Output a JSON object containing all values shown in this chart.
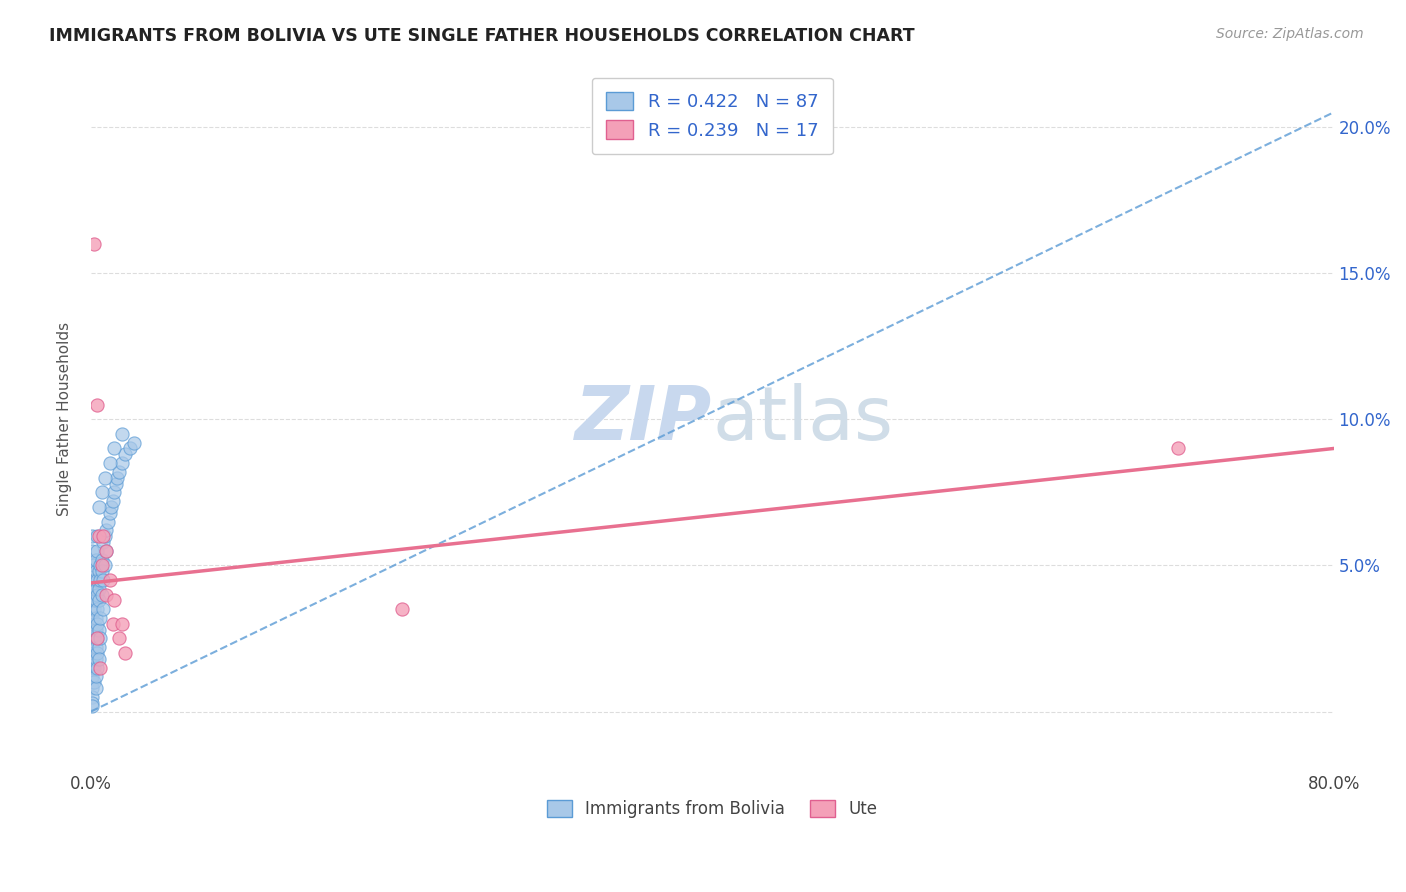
{
  "title": "IMMIGRANTS FROM BOLIVIA VS UTE SINGLE FATHER HOUSEHOLDS CORRELATION CHART",
  "source_text": "Source: ZipAtlas.com",
  "ylabel": "Single Father Households",
  "xlim": [
    0.0,
    0.8
  ],
  "ylim": [
    -0.02,
    0.22
  ],
  "xticks": [
    0.0,
    0.1,
    0.2,
    0.3,
    0.4,
    0.5,
    0.6,
    0.7,
    0.8
  ],
  "xticklabels_show": [
    "0.0%",
    "80.0%"
  ],
  "yticks": [
    0.0,
    0.05,
    0.1,
    0.15,
    0.2
  ],
  "yticklabels_right": [
    "",
    "5.0%",
    "10.0%",
    "15.0%",
    "20.0%"
  ],
  "R_bolivia": 0.422,
  "N_bolivia": 87,
  "R_ute": 0.239,
  "N_ute": 17,
  "color_bolivia": "#a8c8e8",
  "color_ute": "#f4a0b8",
  "edge_bolivia": "#5b9bd5",
  "edge_ute": "#e06090",
  "trendline_bolivia_color": "#5b9bd5",
  "trendline_ute_color": "#e87090",
  "watermark_zip": "ZIP",
  "watermark_atlas": "atlas",
  "watermark_color": "#c8d8ee",
  "title_color": "#222222",
  "grid_color": "#dddddd",
  "legend_color": "#3366cc",
  "bolivia_trend_x0": 0.0,
  "bolivia_trend_y0": 0.0,
  "bolivia_trend_x1": 0.8,
  "bolivia_trend_y1": 0.205,
  "ute_trend_x0": 0.0,
  "ute_trend_y0": 0.044,
  "ute_trend_x1": 0.8,
  "ute_trend_y1": 0.09,
  "bolivia_scatter_x": [
    0.001,
    0.001,
    0.001,
    0.001,
    0.001,
    0.001,
    0.001,
    0.001,
    0.001,
    0.001,
    0.001,
    0.001,
    0.001,
    0.001,
    0.001,
    0.001,
    0.001,
    0.001,
    0.001,
    0.001,
    0.002,
    0.002,
    0.002,
    0.002,
    0.002,
    0.002,
    0.002,
    0.002,
    0.002,
    0.002,
    0.003,
    0.003,
    0.003,
    0.003,
    0.003,
    0.003,
    0.003,
    0.003,
    0.003,
    0.003,
    0.004,
    0.004,
    0.004,
    0.004,
    0.004,
    0.004,
    0.004,
    0.004,
    0.004,
    0.005,
    0.005,
    0.005,
    0.005,
    0.005,
    0.005,
    0.006,
    0.006,
    0.006,
    0.006,
    0.007,
    0.007,
    0.007,
    0.008,
    0.008,
    0.008,
    0.009,
    0.009,
    0.01,
    0.01,
    0.011,
    0.012,
    0.013,
    0.014,
    0.015,
    0.016,
    0.017,
    0.018,
    0.02,
    0.022,
    0.025,
    0.028,
    0.005,
    0.007,
    0.009,
    0.012,
    0.015,
    0.02
  ],
  "bolivia_scatter_y": [
    0.02,
    0.022,
    0.025,
    0.028,
    0.03,
    0.032,
    0.035,
    0.01,
    0.015,
    0.012,
    0.008,
    0.005,
    0.003,
    0.002,
    0.018,
    0.04,
    0.045,
    0.05,
    0.055,
    0.06,
    0.03,
    0.035,
    0.038,
    0.042,
    0.045,
    0.05,
    0.02,
    0.025,
    0.015,
    0.01,
    0.028,
    0.032,
    0.038,
    0.042,
    0.048,
    0.052,
    0.018,
    0.022,
    0.008,
    0.012,
    0.035,
    0.04,
    0.045,
    0.025,
    0.03,
    0.02,
    0.015,
    0.055,
    0.06,
    0.038,
    0.042,
    0.048,
    0.022,
    0.028,
    0.018,
    0.045,
    0.05,
    0.032,
    0.025,
    0.052,
    0.048,
    0.04,
    0.058,
    0.045,
    0.035,
    0.06,
    0.05,
    0.062,
    0.055,
    0.065,
    0.068,
    0.07,
    0.072,
    0.075,
    0.078,
    0.08,
    0.082,
    0.085,
    0.088,
    0.09,
    0.092,
    0.07,
    0.075,
    0.08,
    0.085,
    0.09,
    0.095
  ],
  "ute_scatter_x": [
    0.002,
    0.004,
    0.005,
    0.007,
    0.01,
    0.01,
    0.012,
    0.014,
    0.015,
    0.018,
    0.02,
    0.022,
    0.2,
    0.7,
    0.004,
    0.006,
    0.008
  ],
  "ute_scatter_y": [
    0.16,
    0.105,
    0.06,
    0.05,
    0.055,
    0.04,
    0.045,
    0.03,
    0.038,
    0.025,
    0.03,
    0.02,
    0.035,
    0.09,
    0.025,
    0.015,
    0.06
  ]
}
